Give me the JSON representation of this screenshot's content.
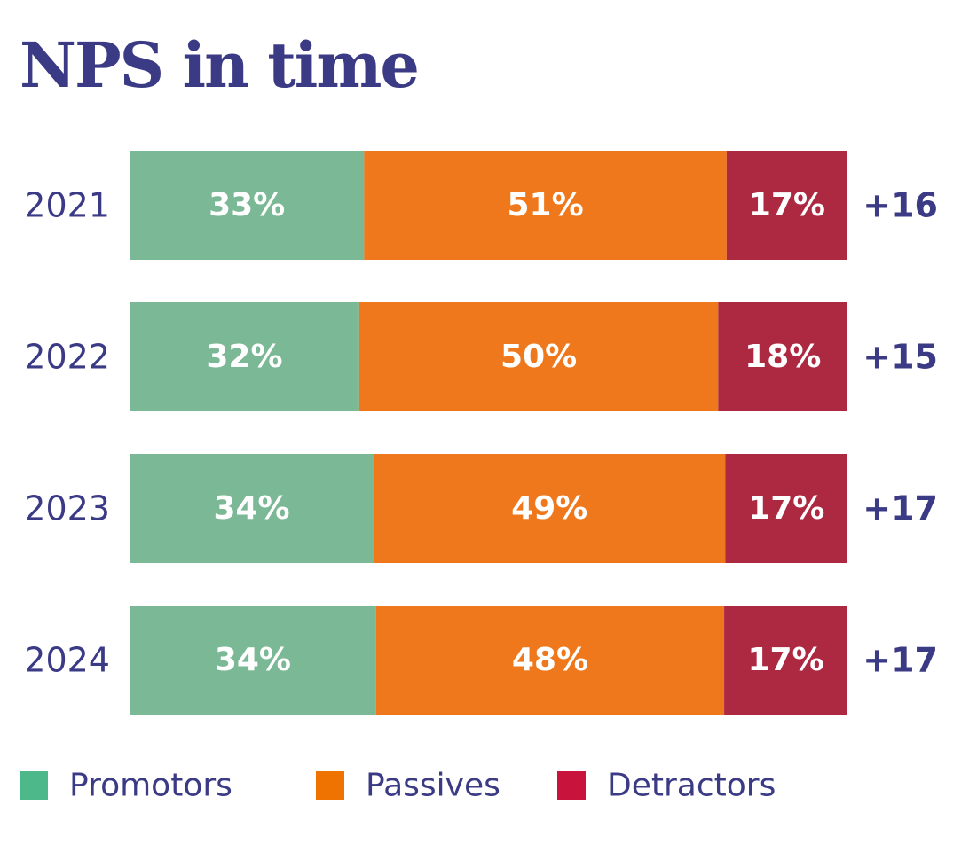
{
  "chart_data": {
    "type": "bar",
    "orientation": "horizontal",
    "stacked": true,
    "title": "NPS in time",
    "categories": [
      "2021",
      "2022",
      "2023",
      "2024"
    ],
    "series": [
      {
        "name": "Promotors",
        "values": [
          33,
          32,
          34,
          34
        ],
        "labels": [
          "33%",
          "32%",
          "34%",
          "34%"
        ],
        "color": "#7bb895"
      },
      {
        "name": "Passives",
        "values": [
          51,
          50,
          49,
          48
        ],
        "labels": [
          "51%",
          "50%",
          "49%",
          "48%"
        ],
        "color": "#ee781b"
      },
      {
        "name": "Detractors",
        "values": [
          17,
          18,
          17,
          17
        ],
        "labels": [
          "17%",
          "18%",
          "17%",
          "17%"
        ],
        "color": "#ad2941"
      }
    ],
    "nps": [
      "+16",
      "+15",
      "+17",
      "+17"
    ],
    "legend": {
      "position": "bottom-left",
      "items": [
        {
          "label": "Promotors",
          "color": "#4db88a"
        },
        {
          "label": "Passives",
          "color": "#ee7300"
        },
        {
          "label": "Detractors",
          "color": "#c8143c"
        }
      ]
    },
    "grid": false
  },
  "colors": {
    "text": "#3b3a85",
    "segment_text": "#ffffff"
  }
}
